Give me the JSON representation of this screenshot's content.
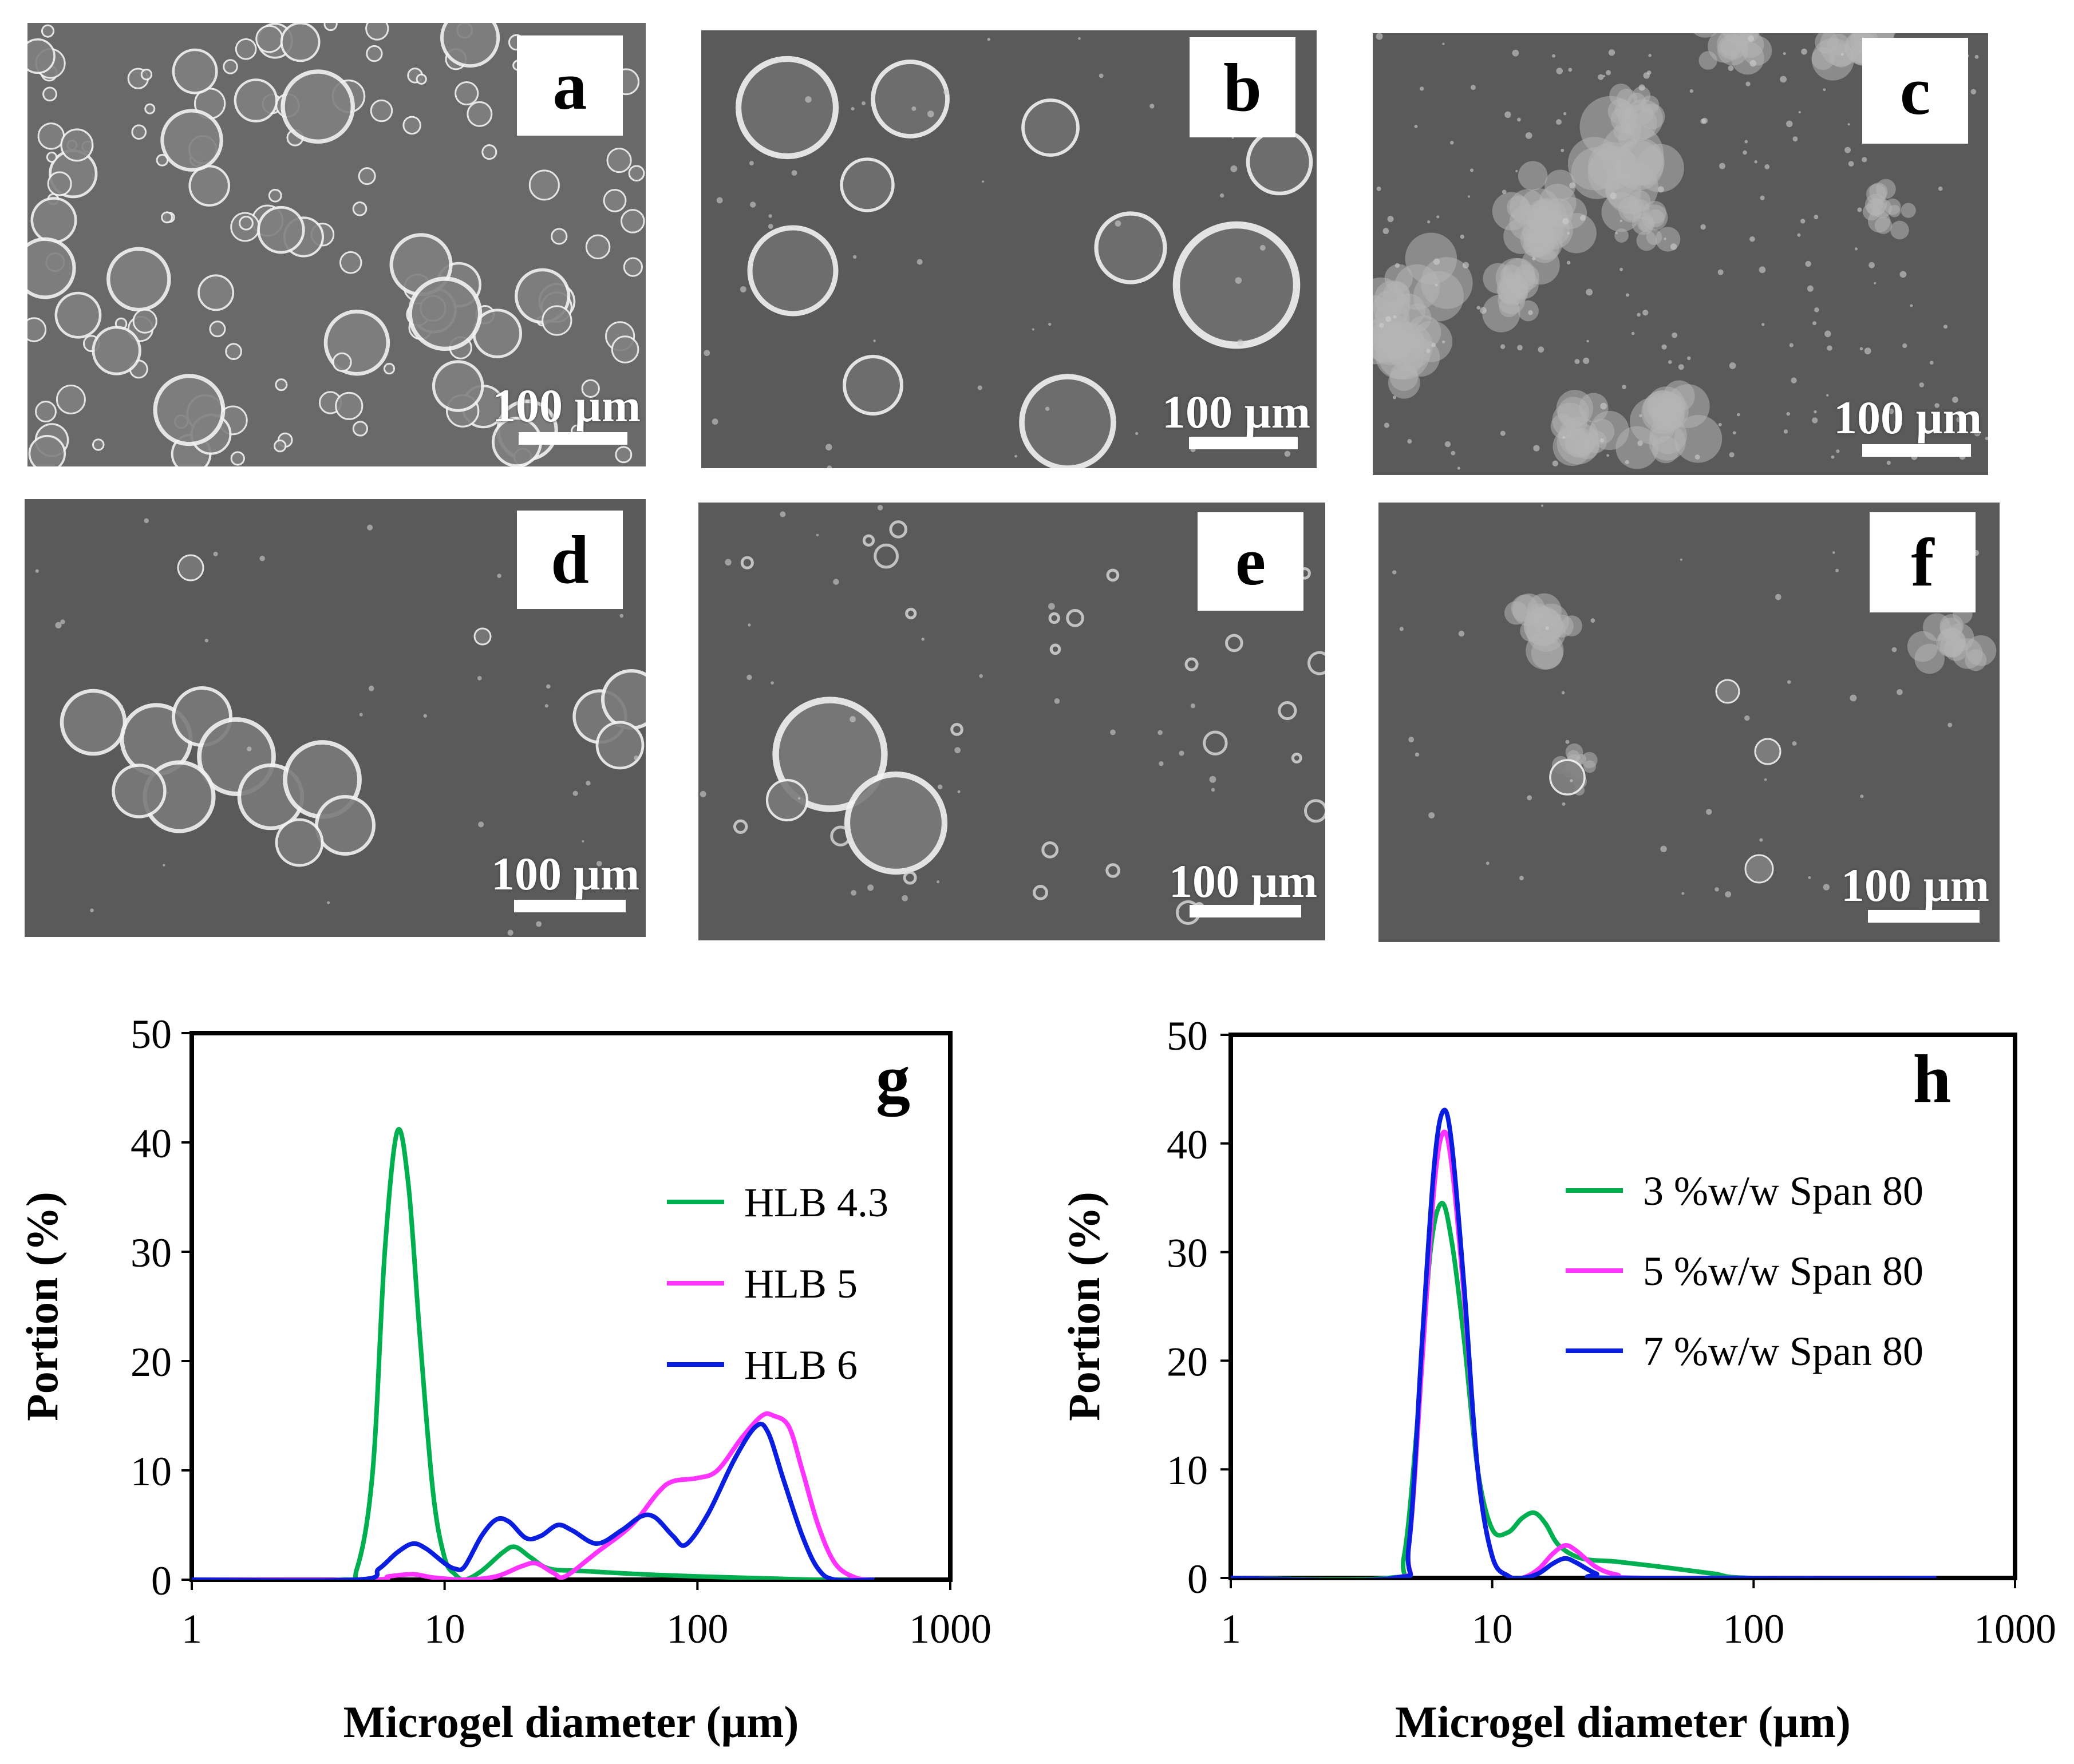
{
  "colors": {
    "micrograph_bg": "#5a5a5a",
    "rim": "#f2f2f2",
    "axis": "#000000",
    "green": "#00b050",
    "magenta": "#ff33ff",
    "blue": "#0a1ee0"
  },
  "micrographs": [
    {
      "letter": "a",
      "scale_label": "100 µm",
      "texture": "dense-droplets"
    },
    {
      "letter": "b",
      "scale_label": "100 µm",
      "texture": "sparse-droplets"
    },
    {
      "letter": "c",
      "scale_label": "100 µm",
      "texture": "aggregates"
    },
    {
      "letter": "d",
      "scale_label": "100 µm",
      "texture": "cluster"
    },
    {
      "letter": "e",
      "scale_label": "100 µm",
      "texture": "pair"
    },
    {
      "letter": "f",
      "scale_label": "100 µm",
      "texture": "small-aggregates"
    }
  ],
  "chart_data": [
    {
      "type": "line",
      "panel_letter": "g",
      "xlabel": "Microgel diameter (µm)",
      "ylabel": "Portion (%)",
      "x_scale": "log",
      "xlim": [
        1,
        1000
      ],
      "ylim": [
        0,
        50
      ],
      "x_ticks": [
        "1",
        "10",
        "100",
        "1000"
      ],
      "y_ticks": [
        "0",
        "10",
        "20",
        "30",
        "40",
        "50"
      ],
      "legend_position": "right-middle",
      "grid": false,
      "series": [
        {
          "name": "HLB 4.3",
          "color": "green",
          "points": [
            [
              1,
              0
            ],
            [
              3.8,
              0
            ],
            [
              4.5,
              1
            ],
            [
              5.2,
              10
            ],
            [
              5.8,
              30
            ],
            [
              6.5,
              41
            ],
            [
              7.2,
              36
            ],
            [
              8,
              22
            ],
            [
              9,
              8
            ],
            [
              10,
              2
            ],
            [
              11,
              0.5
            ],
            [
              12,
              0
            ],
            [
              14,
              0.8
            ],
            [
              17,
              2.5
            ],
            [
              19,
              3
            ],
            [
              22,
              2
            ],
            [
              26,
              1
            ],
            [
              35,
              0.8
            ],
            [
              60,
              0.5
            ],
            [
              100,
              0.3
            ],
            [
              200,
              0.1
            ],
            [
              300,
              0
            ],
            [
              500,
              0
            ]
          ]
        },
        {
          "name": "HLB 5",
          "color": "magenta",
          "points": [
            [
              1,
              0
            ],
            [
              5,
              0
            ],
            [
              6,
              0.3
            ],
            [
              7.5,
              0.5
            ],
            [
              9,
              0.2
            ],
            [
              12,
              0
            ],
            [
              16,
              0.3
            ],
            [
              20,
              1.2
            ],
            [
              23,
              1.5
            ],
            [
              27,
              0.6
            ],
            [
              30,
              0.3
            ],
            [
              40,
              2.5
            ],
            [
              55,
              5
            ],
            [
              70,
              8
            ],
            [
              80,
              9
            ],
            [
              100,
              9.3
            ],
            [
              120,
              10
            ],
            [
              150,
              13
            ],
            [
              180,
              15
            ],
            [
              200,
              15
            ],
            [
              230,
              14
            ],
            [
              260,
              10
            ],
            [
              300,
              5
            ],
            [
              350,
              1.5
            ],
            [
              420,
              0.2
            ],
            [
              500,
              0
            ]
          ]
        },
        {
          "name": "HLB 6",
          "color": "blue",
          "points": [
            [
              1,
              0
            ],
            [
              4.5,
              0
            ],
            [
              5.5,
              1
            ],
            [
              6.5,
              2.5
            ],
            [
              7.5,
              3.3
            ],
            [
              8.5,
              2.8
            ],
            [
              10,
              1.5
            ],
            [
              11,
              1
            ],
            [
              12,
              1.2
            ],
            [
              14,
              4
            ],
            [
              16,
              5.5
            ],
            [
              18,
              5.3
            ],
            [
              21,
              3.8
            ],
            [
              24,
              4
            ],
            [
              28,
              5
            ],
            [
              32,
              4.5
            ],
            [
              40,
              3.3
            ],
            [
              50,
              4.5
            ],
            [
              60,
              5.8
            ],
            [
              68,
              5.7
            ],
            [
              80,
              4
            ],
            [
              90,
              3.2
            ],
            [
              110,
              6
            ],
            [
              140,
              11
            ],
            [
              170,
              14
            ],
            [
              190,
              13.5
            ],
            [
              220,
              9
            ],
            [
              260,
              4
            ],
            [
              300,
              1
            ],
            [
              350,
              0
            ],
            [
              500,
              0
            ]
          ]
        }
      ]
    },
    {
      "type": "line",
      "panel_letter": "h",
      "xlabel": "Microgel diameter (µm)",
      "ylabel": "Portion (%)",
      "x_scale": "log",
      "xlim": [
        1,
        1000
      ],
      "ylim": [
        0,
        50
      ],
      "x_ticks": [
        "1",
        "10",
        "100",
        "1000"
      ],
      "y_ticks": [
        "0",
        "10",
        "20",
        "30",
        "40",
        "50"
      ],
      "legend_position": "right-middle",
      "grid": false,
      "series": [
        {
          "name": "3 %w/w Span 80",
          "color": "green",
          "points": [
            [
              1,
              0
            ],
            [
              4,
              0
            ],
            [
              4.6,
              2
            ],
            [
              5.2,
              15
            ],
            [
              5.8,
              30
            ],
            [
              6.4,
              34.5
            ],
            [
              7,
              31
            ],
            [
              7.8,
              22
            ],
            [
              8.8,
              10
            ],
            [
              10,
              4.5
            ],
            [
              11.5,
              4.2
            ],
            [
              13,
              5.5
            ],
            [
              14.5,
              6
            ],
            [
              16,
              5
            ],
            [
              18,
              3
            ],
            [
              22,
              1.8
            ],
            [
              30,
              1.5
            ],
            [
              45,
              1
            ],
            [
              70,
              0.4
            ],
            [
              100,
              0
            ],
            [
              500,
              0
            ]
          ]
        },
        {
          "name": "5 %w/w Span 80",
          "color": "magenta",
          "points": [
            [
              1,
              0
            ],
            [
              4.2,
              0
            ],
            [
              4.8,
              3
            ],
            [
              5.4,
              20
            ],
            [
              6,
              36
            ],
            [
              6.5,
              41
            ],
            [
              7,
              38
            ],
            [
              7.8,
              26
            ],
            [
              8.8,
              10
            ],
            [
              10,
              2
            ],
            [
              11.5,
              0.2
            ],
            [
              13,
              0
            ],
            [
              15,
              0.8
            ],
            [
              17,
              2.2
            ],
            [
              19,
              3
            ],
            [
              21,
              2.5
            ],
            [
              25,
              1
            ],
            [
              30,
              0.3
            ],
            [
              40,
              0
            ],
            [
              500,
              0
            ]
          ]
        },
        {
          "name": "7 %w/w Span 80",
          "color": "blue",
          "points": [
            [
              1,
              0
            ],
            [
              4.2,
              0
            ],
            [
              4.8,
              3
            ],
            [
              5.4,
              22
            ],
            [
              6,
              38
            ],
            [
              6.5,
              43
            ],
            [
              7,
              40
            ],
            [
              7.8,
              27
            ],
            [
              8.8,
              10
            ],
            [
              10,
              2
            ],
            [
              11.5,
              0.2
            ],
            [
              13,
              0
            ],
            [
              15,
              0.4
            ],
            [
              17,
              1.3
            ],
            [
              19,
              1.8
            ],
            [
              21,
              1.4
            ],
            [
              25,
              0.4
            ],
            [
              30,
              0
            ],
            [
              500,
              0
            ]
          ]
        }
      ]
    }
  ]
}
